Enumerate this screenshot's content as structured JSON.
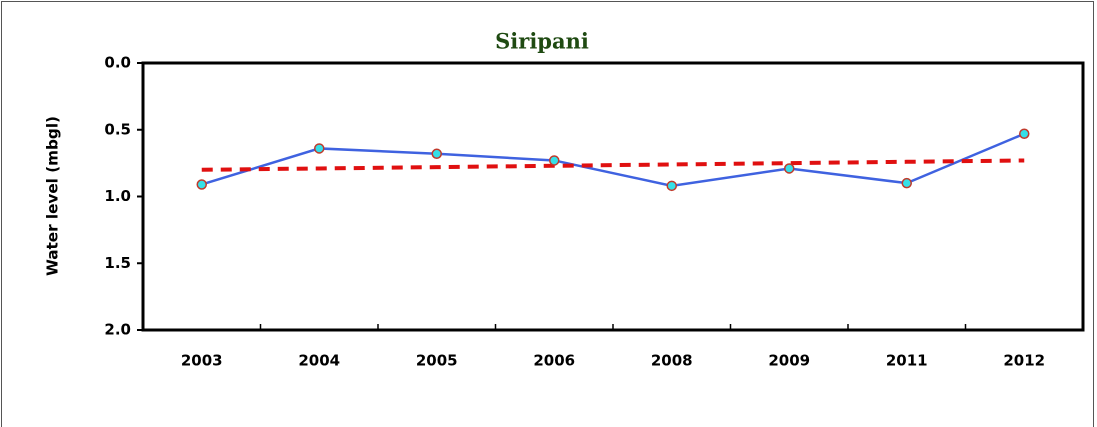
{
  "chart_data": {
    "type": "line",
    "title": "Siripani",
    "y_label": "Water level (mbgl)",
    "categories": [
      "2003",
      "2004",
      "2005",
      "2006",
      "2008",
      "2009",
      "2011",
      "2012"
    ],
    "series": [
      {
        "color": "#3f62e0",
        "style": "solid",
        "markers": true,
        "values": [
          0.91,
          0.64,
          0.68,
          0.73,
          0.92,
          0.79,
          0.9,
          0.53
        ]
      },
      {
        "color": "#e01010",
        "style": "dashed",
        "markers": false,
        "values": [
          0.8,
          0.79,
          0.78,
          0.77,
          0.76,
          0.75,
          0.74,
          0.73
        ]
      }
    ],
    "ylim": [
      0,
      2
    ],
    "y_inverted": true,
    "yticks": [
      {
        "value": 0,
        "label": "0.0"
      },
      {
        "value": 0.5,
        "label": "0.5"
      },
      {
        "value": 1,
        "label": "1.0"
      },
      {
        "value": 1.5,
        "label": "1.5"
      },
      {
        "value": 2,
        "label": "2.0"
      }
    ],
    "grid": false
  }
}
